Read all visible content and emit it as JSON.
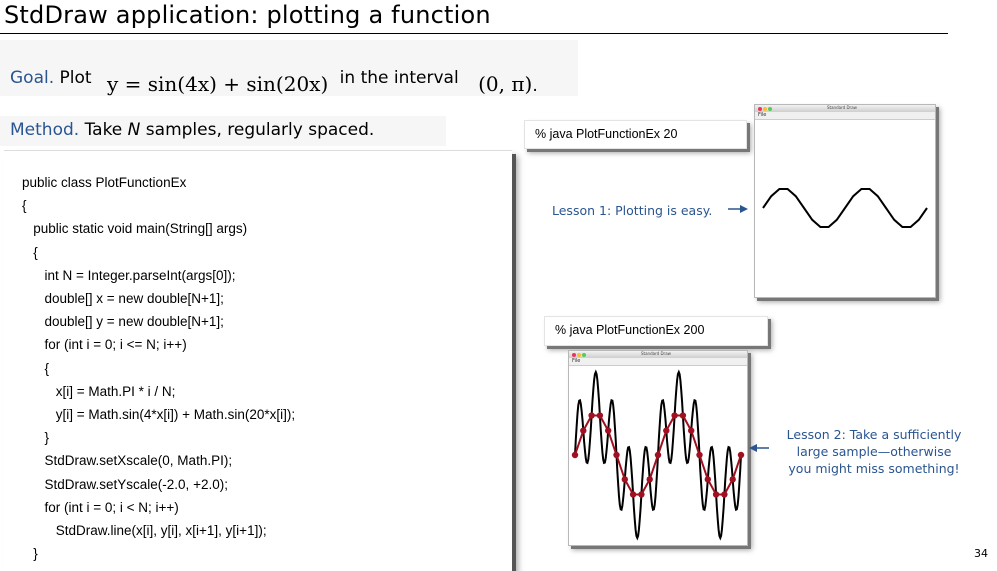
{
  "title": "StdDraw application: plotting a function",
  "goal": {
    "label": "Goal.",
    "text": "Plot",
    "formula": "y = sin(4x) + sin(20x)",
    "tail": "in the interval",
    "interval": "(0, π)",
    "period": "."
  },
  "method": {
    "label": "Method.",
    "text_pre": "Take",
    "n": "N",
    "text_post": "samples, regularly spaced."
  },
  "code": {
    "lines": [
      "public class PlotFunctionEx",
      "{",
      "   public static void main(String[] args)",
      "   {",
      "      int N = Integer.parseInt(args[0]);",
      "      double[] x = new double[N+1];",
      "      double[] y = new double[N+1];",
      "      for (int i = 0; i <= N; i++)",
      "      {",
      "         x[i] = Math.PI * i / N;",
      "         y[i] = Math.sin(4*x[i]) + Math.sin(20*x[i]);",
      "      }",
      "      StdDraw.setXscale(0, Math.PI);",
      "      StdDraw.setYscale(-2.0, +2.0);",
      "      for (int i = 0; i < N; i++)",
      "         StdDraw.line(x[i], y[i], x[i+1], y[i+1]);",
      "   }"
    ]
  },
  "run1": {
    "command": "% java PlotFunctionEx 20",
    "window_title": "Standard Draw",
    "menu": "File",
    "samples": 20
  },
  "run2": {
    "command": "% java PlotFunctionEx 200",
    "window_title": "Standard Draw",
    "menu": "File",
    "samples": 200,
    "overlay_samples": 20
  },
  "lesson1": "Lesson 1: Plotting is easy.",
  "lesson2": {
    "line1": "Lesson 2: Take a sufficiently",
    "line2": "large sample—otherwise",
    "line3": "you might miss something!"
  },
  "page_number": "34",
  "colors": {
    "accent_blue": "#2a5591",
    "plot_line": "#000000",
    "sample_points": "#a01020",
    "band": "#f6f6f6"
  },
  "chart_data": [
    {
      "type": "line",
      "function": "sin(4x) + sin(20x)",
      "xlim": [
        0,
        3.14159
      ],
      "ylim": [
        -2.0,
        2.0
      ],
      "series": [
        {
          "samples": 20
        }
      ]
    },
    {
      "type": "line",
      "function": "sin(4x) + sin(20x)",
      "xlim": [
        0,
        3.14159
      ],
      "ylim": [
        -2.0,
        2.0
      ],
      "series": [
        {
          "samples": 200
        },
        {
          "samples": 20,
          "markers": true
        }
      ]
    }
  ]
}
